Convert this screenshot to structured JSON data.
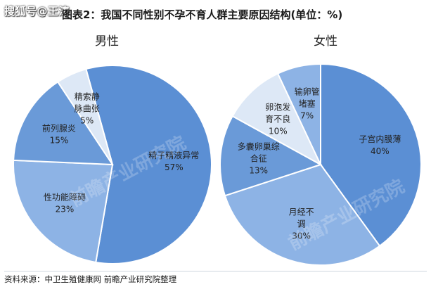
{
  "watermark": "搜狐号@王涛",
  "title": "图表2：我国不同性别不孕不育人群主要原因结构(单位：%)",
  "source": "资料来源：中卫生殖健康网 前瞻产业研究院整理",
  "chart_data": [
    {
      "type": "pie",
      "subtitle": "男性",
      "slices": [
        {
          "name": "精子精液异常",
          "value": 57,
          "label": "57%",
          "lines": [
            "精子精液异常"
          ],
          "color": "#5b8fd4"
        },
        {
          "name": "性功能障碍",
          "value": 23,
          "label": "23%",
          "lines": [
            "性功能障碍"
          ],
          "color": "#8db3e5"
        },
        {
          "name": "前列腺炎",
          "value": 15,
          "label": "15%",
          "lines": [
            "前列腺炎"
          ],
          "color": "#6a9ad8"
        },
        {
          "name": "精索静脉曲张",
          "value": 5,
          "label": "5%",
          "lines": [
            "精索静",
            "脉曲张"
          ],
          "color": "#dde8f6"
        }
      ]
    },
    {
      "type": "pie",
      "subtitle": "女性",
      "slices": [
        {
          "name": "子宫内膜薄",
          "value": 40,
          "label": "40%",
          "lines": [
            "子宫内膜薄"
          ],
          "color": "#5b8fd4"
        },
        {
          "name": "月经不调",
          "value": 30,
          "label": "30%",
          "lines": [
            "月经不",
            "调"
          ],
          "color": "#8db3e5"
        },
        {
          "name": "多囊卵巢综合征",
          "value": 13,
          "label": "13%",
          "lines": [
            "多囊卵巢综",
            "合征"
          ],
          "color": "#6a9ad8"
        },
        {
          "name": "卵泡发育不良",
          "value": 10,
          "label": "10%",
          "lines": [
            "卵泡发",
            "育不良"
          ],
          "color": "#dde8f6"
        },
        {
          "name": "输卵管堵塞",
          "value": 7,
          "label": "7%",
          "lines": [
            "输卵管",
            "堵塞"
          ],
          "color": "#8db3e5"
        }
      ]
    }
  ]
}
